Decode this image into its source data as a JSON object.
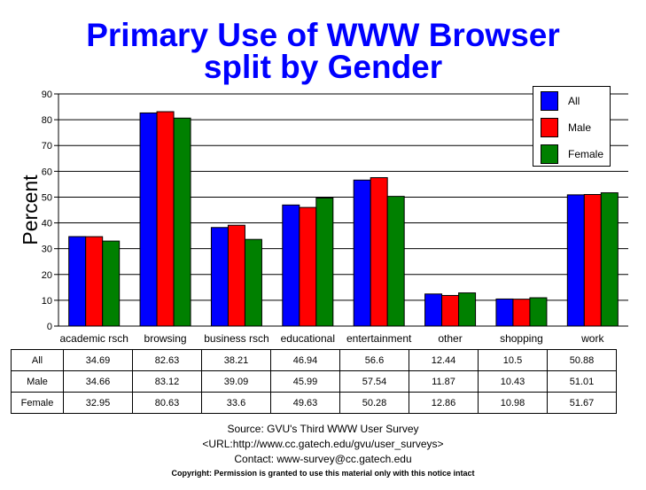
{
  "chart_data": {
    "type": "bar",
    "title_lines": [
      "Primary Use of WWW Browser",
      "split by Gender"
    ],
    "ylabel": "Percent",
    "xlabel": "",
    "ylim": [
      0,
      90
    ],
    "yticks": [
      0,
      10,
      20,
      30,
      40,
      50,
      60,
      70,
      80,
      90
    ],
    "grid": true,
    "legend_position": "top-right",
    "categories": [
      "academic rsch",
      "browsing",
      "business rsch",
      "educational",
      "entertainment",
      "other",
      "shopping",
      "work"
    ],
    "series": [
      {
        "name": "All",
        "color": "#0000ff",
        "values": [
          34.69,
          82.63,
          38.21,
          46.94,
          56.6,
          12.44,
          10.5,
          50.88
        ]
      },
      {
        "name": "Male",
        "color": "#ff0000",
        "values": [
          34.66,
          83.12,
          39.09,
          45.99,
          57.54,
          11.87,
          10.43,
          51.01
        ]
      },
      {
        "name": "Female",
        "color": "#008000",
        "values": [
          32.95,
          80.63,
          33.6,
          49.63,
          50.28,
          12.86,
          10.98,
          51.67
        ]
      }
    ],
    "table_values": [
      [
        "34.69",
        "82.63",
        "38.21",
        "46.94",
        "56.6",
        "12.44",
        "10.5",
        "50.88"
      ],
      [
        "34.66",
        "83.12",
        "39.09",
        "45.99",
        "57.54",
        "11.87",
        "10.43",
        "51.01"
      ],
      [
        "32.95",
        "80.63",
        "33.6",
        "49.63",
        "50.28",
        "12.86",
        "10.98",
        "51.67"
      ]
    ]
  },
  "footer": {
    "source": "Source: GVU's Third WWW User Survey",
    "url": "<URL:http://www.cc.gatech.edu/gvu/user_surveys>",
    "contact": "Contact: www-survey@cc.gatech.edu",
    "copyright": "Copyright: Permission is granted to use this material only with this notice intact"
  }
}
